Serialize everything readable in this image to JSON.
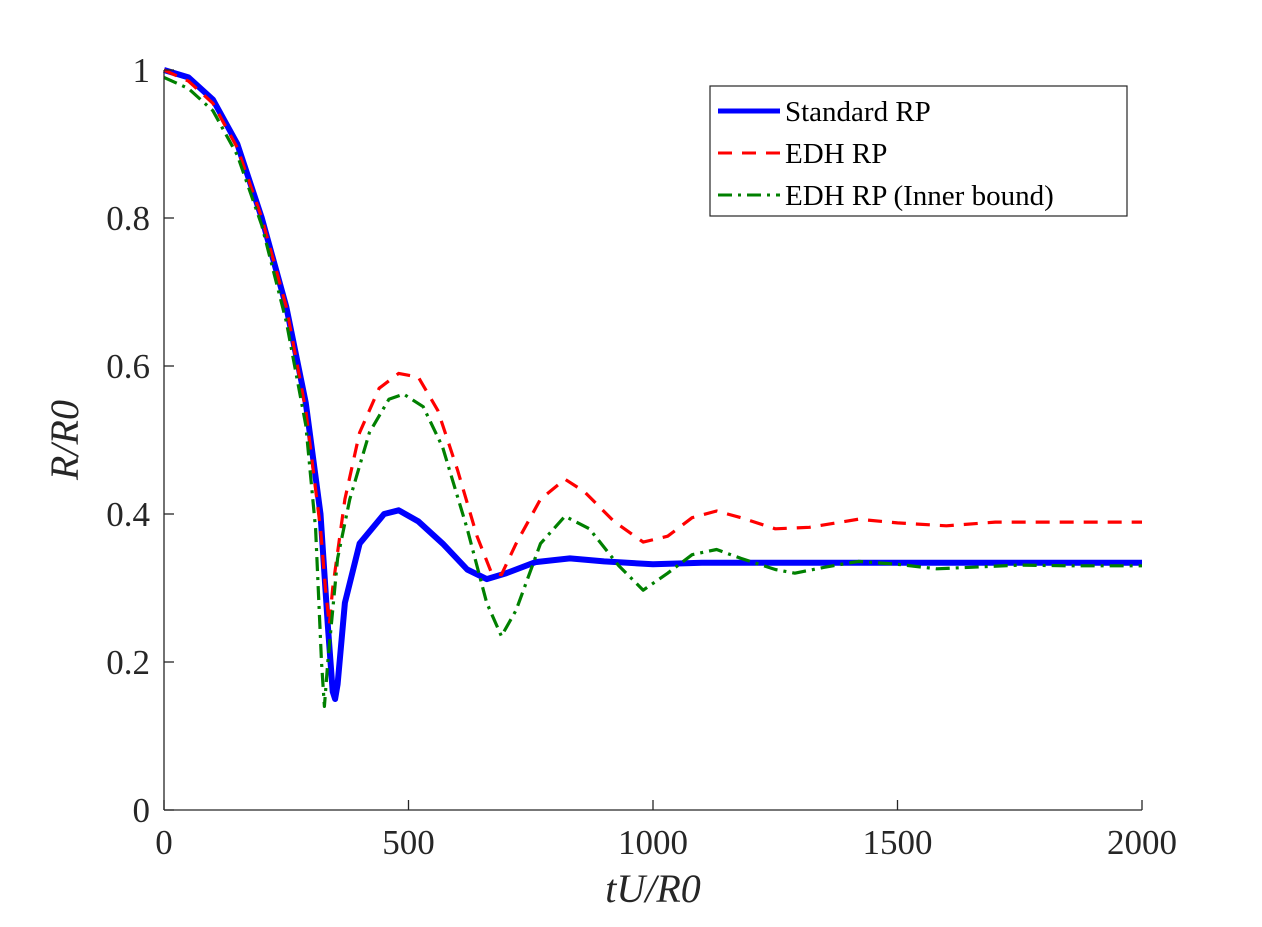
{
  "chart_data": {
    "type": "line",
    "title": "",
    "xlabel": "tU/R0",
    "ylabel": "R/R0",
    "xlim": [
      0,
      2000
    ],
    "ylim": [
      0,
      1
    ],
    "x_ticks": [
      0,
      500,
      1000,
      1500,
      2000
    ],
    "y_ticks": [
      0,
      0.2,
      0.4,
      0.6,
      0.8,
      1
    ],
    "x_tick_labels": [
      "0",
      "500",
      "1000",
      "1500",
      "2000"
    ],
    "y_tick_labels": [
      "0",
      "0.2",
      "0.4",
      "0.6",
      "0.8",
      "1"
    ],
    "grid": false,
    "legend_position": "top-right",
    "series": [
      {
        "name": "Standard RP",
        "color": "#0000ff",
        "style": "solid",
        "points": [
          [
            0,
            1.0
          ],
          [
            50,
            0.99
          ],
          [
            100,
            0.96
          ],
          [
            150,
            0.9
          ],
          [
            200,
            0.8
          ],
          [
            250,
            0.68
          ],
          [
            290,
            0.55
          ],
          [
            320,
            0.4
          ],
          [
            335,
            0.25
          ],
          [
            345,
            0.16
          ],
          [
            350,
            0.15
          ],
          [
            355,
            0.17
          ],
          [
            370,
            0.28
          ],
          [
            400,
            0.36
          ],
          [
            450,
            0.4
          ],
          [
            480,
            0.405
          ],
          [
            520,
            0.39
          ],
          [
            570,
            0.36
          ],
          [
            620,
            0.325
          ],
          [
            660,
            0.312
          ],
          [
            700,
            0.32
          ],
          [
            760,
            0.335
          ],
          [
            830,
            0.34
          ],
          [
            900,
            0.336
          ],
          [
            1000,
            0.332
          ],
          [
            1100,
            0.334
          ],
          [
            1300,
            0.334
          ],
          [
            1600,
            0.334
          ],
          [
            2000,
            0.334
          ]
        ]
      },
      {
        "name": "EDH RP",
        "color": "#ff0000",
        "style": "dashed",
        "points": [
          [
            0,
            1.0
          ],
          [
            50,
            0.985
          ],
          [
            100,
            0.955
          ],
          [
            150,
            0.895
          ],
          [
            200,
            0.8
          ],
          [
            250,
            0.68
          ],
          [
            290,
            0.54
          ],
          [
            320,
            0.38
          ],
          [
            330,
            0.3
          ],
          [
            338,
            0.25
          ],
          [
            345,
            0.3
          ],
          [
            370,
            0.42
          ],
          [
            400,
            0.51
          ],
          [
            440,
            0.57
          ],
          [
            480,
            0.59
          ],
          [
            520,
            0.585
          ],
          [
            560,
            0.54
          ],
          [
            600,
            0.46
          ],
          [
            640,
            0.37
          ],
          [
            670,
            0.32
          ],
          [
            690,
            0.318
          ],
          [
            720,
            0.36
          ],
          [
            770,
            0.42
          ],
          [
            820,
            0.447
          ],
          [
            860,
            0.43
          ],
          [
            920,
            0.39
          ],
          [
            980,
            0.362
          ],
          [
            1030,
            0.37
          ],
          [
            1080,
            0.395
          ],
          [
            1130,
            0.404
          ],
          [
            1180,
            0.395
          ],
          [
            1250,
            0.38
          ],
          [
            1320,
            0.382
          ],
          [
            1420,
            0.393
          ],
          [
            1500,
            0.388
          ],
          [
            1600,
            0.384
          ],
          [
            1700,
            0.389
          ],
          [
            1800,
            0.389
          ],
          [
            2000,
            0.389
          ]
        ]
      },
      {
        "name": "EDH RP (Inner bound)",
        "color": "#008000",
        "style": "dashdot",
        "points": [
          [
            0,
            0.99
          ],
          [
            50,
            0.975
          ],
          [
            100,
            0.945
          ],
          [
            150,
            0.885
          ],
          [
            200,
            0.79
          ],
          [
            250,
            0.66
          ],
          [
            290,
            0.52
          ],
          [
            310,
            0.38
          ],
          [
            322,
            0.2
          ],
          [
            328,
            0.14
          ],
          [
            335,
            0.2
          ],
          [
            355,
            0.34
          ],
          [
            380,
            0.42
          ],
          [
            420,
            0.51
          ],
          [
            460,
            0.555
          ],
          [
            490,
            0.562
          ],
          [
            530,
            0.545
          ],
          [
            570,
            0.49
          ],
          [
            620,
            0.38
          ],
          [
            660,
            0.28
          ],
          [
            690,
            0.235
          ],
          [
            720,
            0.27
          ],
          [
            770,
            0.36
          ],
          [
            820,
            0.397
          ],
          [
            870,
            0.38
          ],
          [
            930,
            0.33
          ],
          [
            980,
            0.297
          ],
          [
            1030,
            0.32
          ],
          [
            1080,
            0.345
          ],
          [
            1130,
            0.352
          ],
          [
            1180,
            0.34
          ],
          [
            1250,
            0.325
          ],
          [
            1290,
            0.32
          ],
          [
            1350,
            0.328
          ],
          [
            1420,
            0.336
          ],
          [
            1500,
            0.332
          ],
          [
            1580,
            0.326
          ],
          [
            1650,
            0.328
          ],
          [
            1750,
            0.331
          ],
          [
            1850,
            0.33
          ],
          [
            2000,
            0.33
          ]
        ]
      }
    ]
  }
}
